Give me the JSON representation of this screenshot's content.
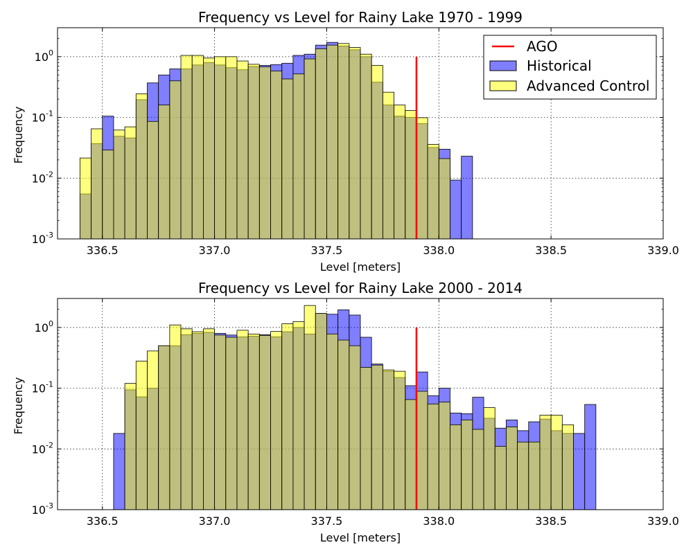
{
  "figure": {
    "colors": {
      "historical": "#0000ff",
      "advanced_control": "#ffff00",
      "overlap_note": "translucent blue over translucent yellow appears olive",
      "ago": "#ff0000",
      "grid": "#000000"
    },
    "legend": {
      "placement": "top-right of first panel",
      "entries": [
        {
          "label": "AGO",
          "type": "line",
          "color": "#ff0000"
        },
        {
          "label": "Historical",
          "type": "patch",
          "color": "#0000ff"
        },
        {
          "label": "Advanced Control",
          "type": "patch",
          "color": "#ffff00"
        }
      ]
    }
  },
  "chart_data": [
    {
      "type": "bar",
      "title": "Frequency vs Level for Rainy Lake 1970 - 1999",
      "xlabel": "Level [meters]",
      "ylabel": "Frequency",
      "xlim": [
        336.3,
        339.0
      ],
      "ylim": [
        0.001,
        3.0
      ],
      "yscale": "log",
      "grid": true,
      "xticks": [
        336.5,
        337.0,
        337.5,
        338.0,
        338.5,
        339.0
      ],
      "xtick_labels": [
        "336.5",
        "337.0",
        "337.5",
        "338.0",
        "338.5",
        "339.0"
      ],
      "yticks": [
        {
          "value": 0.001,
          "base": "10",
          "exp": "-3"
        },
        {
          "value": 0.01,
          "base": "10",
          "exp": "-2"
        },
        {
          "value": 0.1,
          "base": "10",
          "exp": "-1"
        },
        {
          "value": 1,
          "base": "10",
          "exp": "0"
        }
      ],
      "bin_width": 0.05,
      "ago_level": 337.9,
      "ago_top": 1.0,
      "series": [
        {
          "name": "Historical",
          "color": "#0000ff",
          "bins": [
            [
              336.4,
              336.45,
              0.0055
            ],
            [
              336.45,
              336.5,
              0.037
            ],
            [
              336.5,
              336.55,
              0.105
            ],
            [
              336.55,
              336.6,
              0.049
            ],
            [
              336.6,
              336.65,
              0.046
            ],
            [
              336.65,
              336.7,
              0.196
            ],
            [
              336.7,
              336.75,
              0.37
            ],
            [
              336.75,
              336.8,
              0.5
            ],
            [
              336.8,
              336.85,
              0.63
            ],
            [
              336.85,
              336.9,
              0.63
            ],
            [
              336.9,
              336.95,
              0.73
            ],
            [
              336.95,
              337.0,
              0.8
            ],
            [
              337.0,
              337.05,
              0.73
            ],
            [
              337.05,
              337.1,
              0.66
            ],
            [
              337.1,
              337.15,
              0.61
            ],
            [
              337.15,
              337.2,
              0.69
            ],
            [
              337.2,
              337.25,
              0.72
            ],
            [
              337.25,
              337.3,
              0.74
            ],
            [
              337.3,
              337.35,
              0.78
            ],
            [
              337.35,
              337.4,
              1.05
            ],
            [
              337.4,
              337.45,
              1.1
            ],
            [
              337.45,
              337.5,
              1.55
            ],
            [
              337.5,
              337.55,
              1.72
            ],
            [
              337.55,
              337.6,
              1.5
            ],
            [
              337.6,
              337.65,
              1.3
            ],
            [
              337.65,
              337.7,
              1.0
            ],
            [
              337.7,
              337.75,
              0.38
            ],
            [
              337.75,
              337.8,
              0.16
            ],
            [
              337.8,
              337.85,
              0.105
            ],
            [
              337.85,
              337.9,
              0.1
            ],
            [
              337.9,
              337.95,
              0.079
            ],
            [
              337.95,
              338.0,
              0.032
            ],
            [
              338.0,
              338.05,
              0.03
            ],
            [
              338.05,
              338.1,
              0.0093
            ],
            [
              338.1,
              338.15,
              0.023
            ]
          ]
        },
        {
          "name": "Advanced Control",
          "color": "#ffff00",
          "bins": [
            [
              336.4,
              336.45,
              0.0215
            ],
            [
              336.45,
              336.5,
              0.065
            ],
            [
              336.5,
              336.55,
              0.029
            ],
            [
              336.55,
              336.6,
              0.062
            ],
            [
              336.6,
              336.65,
              0.07
            ],
            [
              336.65,
              336.7,
              0.245
            ],
            [
              336.7,
              336.75,
              0.086
            ],
            [
              336.75,
              336.8,
              0.16
            ],
            [
              336.8,
              336.85,
              0.4
            ],
            [
              336.85,
              336.9,
              1.05
            ],
            [
              336.9,
              336.95,
              1.05
            ],
            [
              336.95,
              337.0,
              0.95
            ],
            [
              337.0,
              337.05,
              1.0
            ],
            [
              337.05,
              337.1,
              1.0
            ],
            [
              337.1,
              337.15,
              0.85
            ],
            [
              337.15,
              337.2,
              0.75
            ],
            [
              337.2,
              337.25,
              0.68
            ],
            [
              337.25,
              337.3,
              0.58
            ],
            [
              337.3,
              337.35,
              0.43
            ],
            [
              337.35,
              337.4,
              0.52
            ],
            [
              337.4,
              337.45,
              0.92
            ],
            [
              337.45,
              337.5,
              1.35
            ],
            [
              337.5,
              337.55,
              1.55
            ],
            [
              337.55,
              337.6,
              1.65
            ],
            [
              337.6,
              337.65,
              1.42
            ],
            [
              337.65,
              337.7,
              1.1
            ],
            [
              337.7,
              337.75,
              0.72
            ],
            [
              337.75,
              337.8,
              0.26
            ],
            [
              337.8,
              337.85,
              0.16
            ],
            [
              337.85,
              337.9,
              0.13
            ],
            [
              337.9,
              337.95,
              0.099
            ],
            [
              337.95,
              338.0,
              0.036
            ],
            [
              338.0,
              338.05,
              0.021
            ]
          ]
        }
      ]
    },
    {
      "type": "bar",
      "title": "Frequency vs Level for Rainy Lake 2000 - 2014",
      "xlabel": "Level [meters]",
      "ylabel": "Frequency",
      "xlim": [
        336.3,
        339.0
      ],
      "ylim": [
        0.001,
        3.0
      ],
      "yscale": "log",
      "grid": true,
      "xticks": [
        336.5,
        337.0,
        337.5,
        338.0,
        338.5,
        339.0
      ],
      "xtick_labels": [
        "336.5",
        "337.0",
        "337.5",
        "338.0",
        "338.5",
        "339.0"
      ],
      "yticks": [
        {
          "value": 0.001,
          "base": "10",
          "exp": "-3"
        },
        {
          "value": 0.01,
          "base": "10",
          "exp": "-2"
        },
        {
          "value": 0.1,
          "base": "10",
          "exp": "-1"
        },
        {
          "value": 1,
          "base": "10",
          "exp": "0"
        }
      ],
      "bin_width": 0.05,
      "ago_level": 337.9,
      "ago_top": 1.0,
      "series": [
        {
          "name": "Historical",
          "color": "#0000ff",
          "bins": [
            [
              336.55,
              336.6,
              0.018
            ],
            [
              336.6,
              336.65,
              0.094
            ],
            [
              336.65,
              336.7,
              0.072
            ],
            [
              336.7,
              336.75,
              0.1
            ],
            [
              336.75,
              336.8,
              0.5
            ],
            [
              336.8,
              336.85,
              0.5
            ],
            [
              336.85,
              336.9,
              0.76
            ],
            [
              336.9,
              336.95,
              0.8
            ],
            [
              336.95,
              337.0,
              0.83
            ],
            [
              337.0,
              337.05,
              0.8
            ],
            [
              337.05,
              337.1,
              0.75
            ],
            [
              337.1,
              337.15,
              0.7
            ],
            [
              337.15,
              337.2,
              0.72
            ],
            [
              337.2,
              337.25,
              0.76
            ],
            [
              337.25,
              337.3,
              0.7
            ],
            [
              337.3,
              337.35,
              0.85
            ],
            [
              337.35,
              337.4,
              1.0
            ],
            [
              337.4,
              337.45,
              0.78
            ],
            [
              337.45,
              337.5,
              1.7
            ],
            [
              337.5,
              337.55,
              1.65
            ],
            [
              337.55,
              337.6,
              1.95
            ],
            [
              337.6,
              337.65,
              1.6
            ],
            [
              337.65,
              337.7,
              0.69
            ],
            [
              337.7,
              337.75,
              0.25
            ],
            [
              337.75,
              337.8,
              0.19
            ],
            [
              337.8,
              337.85,
              0.15
            ],
            [
              337.85,
              337.9,
              0.11
            ],
            [
              337.9,
              337.95,
              0.185
            ],
            [
              337.95,
              338.0,
              0.075
            ],
            [
              338.0,
              338.05,
              0.1
            ],
            [
              338.05,
              338.1,
              0.039
            ],
            [
              338.1,
              338.15,
              0.038
            ],
            [
              338.15,
              338.2,
              0.071
            ],
            [
              338.2,
              338.25,
              0.032
            ],
            [
              338.25,
              338.3,
              0.022
            ],
            [
              338.3,
              338.35,
              0.03
            ],
            [
              338.35,
              338.4,
              0.02
            ],
            [
              338.4,
              338.45,
              0.028
            ],
            [
              338.45,
              338.5,
              0.031
            ],
            [
              338.5,
              338.55,
              0.02
            ],
            [
              338.55,
              338.6,
              0.018
            ],
            [
              338.6,
              338.65,
              0.018
            ],
            [
              338.65,
              338.7,
              0.054
            ]
          ]
        },
        {
          "name": "Advanced Control",
          "color": "#ffff00",
          "bins": [
            [
              336.6,
              336.65,
              0.12
            ],
            [
              336.65,
              336.7,
              0.28
            ],
            [
              336.7,
              336.75,
              0.41
            ],
            [
              336.75,
              336.8,
              0.5
            ],
            [
              336.8,
              336.85,
              1.1
            ],
            [
              336.85,
              336.9,
              0.95
            ],
            [
              336.9,
              336.95,
              0.85
            ],
            [
              336.95,
              337.0,
              0.95
            ],
            [
              337.0,
              337.05,
              0.75
            ],
            [
              337.05,
              337.1,
              0.69
            ],
            [
              337.1,
              337.15,
              0.9
            ],
            [
              337.15,
              337.2,
              0.78
            ],
            [
              337.2,
              337.25,
              0.74
            ],
            [
              337.25,
              337.3,
              0.86
            ],
            [
              337.3,
              337.35,
              1.15
            ],
            [
              337.35,
              337.4,
              1.25
            ],
            [
              337.4,
              337.45,
              2.3
            ],
            [
              337.45,
              337.5,
              1.7
            ],
            [
              337.5,
              337.55,
              0.78
            ],
            [
              337.55,
              337.6,
              0.62
            ],
            [
              337.6,
              337.65,
              0.5
            ],
            [
              337.65,
              337.7,
              0.22
            ],
            [
              337.7,
              337.75,
              0.24
            ],
            [
              337.75,
              337.8,
              0.2
            ],
            [
              337.8,
              337.85,
              0.19
            ],
            [
              337.85,
              337.9,
              0.065
            ],
            [
              337.9,
              337.95,
              0.089
            ],
            [
              337.95,
              338.0,
              0.055
            ],
            [
              338.0,
              338.05,
              0.059
            ],
            [
              338.05,
              338.1,
              0.025
            ],
            [
              338.1,
              338.15,
              0.03
            ],
            [
              338.15,
              338.2,
              0.021
            ],
            [
              338.2,
              338.25,
              0.048
            ],
            [
              338.25,
              338.3,
              0.011
            ],
            [
              338.3,
              338.35,
              0.023
            ],
            [
              338.35,
              338.4,
              0.013
            ],
            [
              338.4,
              338.45,
              0.013
            ],
            [
              338.45,
              338.5,
              0.036
            ],
            [
              338.5,
              338.55,
              0.036
            ],
            [
              338.55,
              338.6,
              0.025
            ]
          ]
        }
      ]
    }
  ]
}
